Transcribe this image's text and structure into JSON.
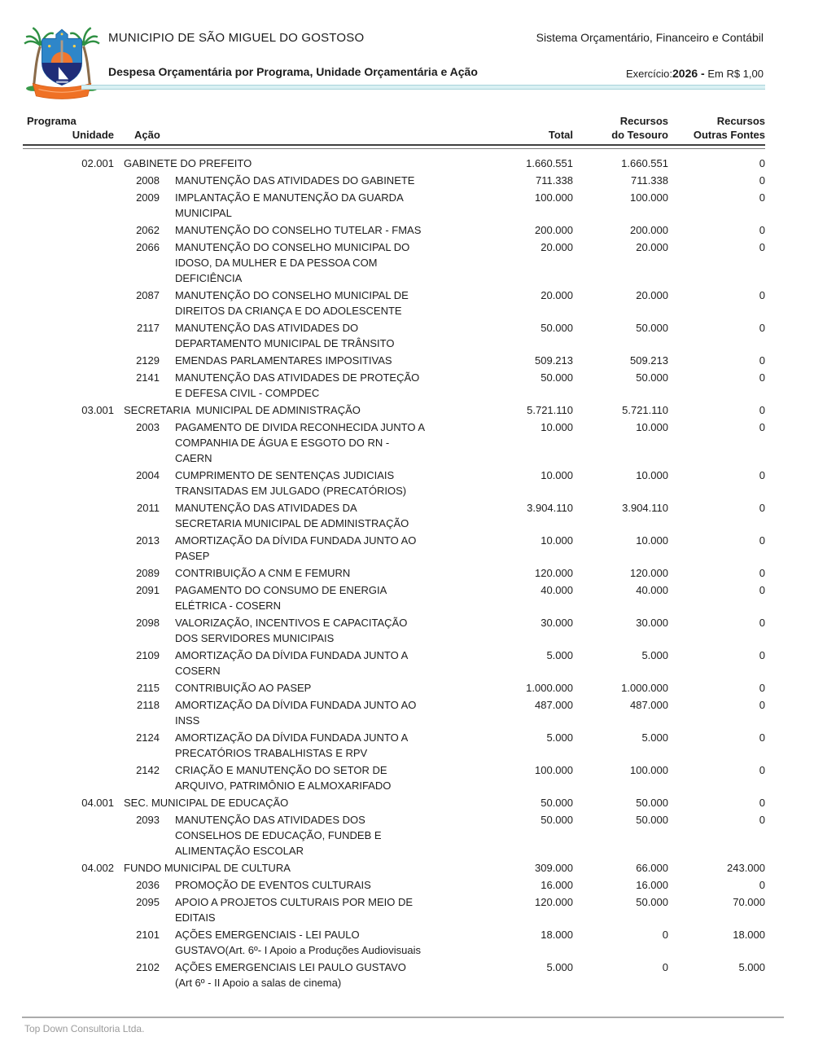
{
  "header": {
    "municipality": "MUNICIPIO DE SÃO MIGUEL DO GOSTOSO",
    "system_name": "Sistema Orçamentário, Financeiro e Contábil",
    "report_title": "Despesa Orçamentária por Programa, Unidade Orçamentária e Ação",
    "exercise_label": "Exercício:",
    "exercise_value": "2026 -",
    "currency_note": "Em R$ 1,00",
    "logo_icon": "municipal-coat-of-arms"
  },
  "columns": {
    "programa": "Programa",
    "unidade": "Unidade",
    "acao": "Ação",
    "total": "Total",
    "tesouro_line1": "Recursos",
    "tesouro_line2": "do Tesouro",
    "outras_line1": "Recursos",
    "outras_line2": "Outras Fontes"
  },
  "rows": [
    {
      "type": "unit",
      "code": "02.001",
      "name": "GABINETE DO PREFEITO",
      "total": "1.660.551",
      "tesouro": "1.660.551",
      "outras": "0"
    },
    {
      "type": "action",
      "code": "2008",
      "name": "MANUTENÇÃO DAS ATIVIDADES DO GABINETE",
      "total": "711.338",
      "tesouro": "711.338",
      "outras": "0"
    },
    {
      "type": "action",
      "code": "2009",
      "name": "IMPLANTAÇÃO E MANUTENÇÃO DA GUARDA\nMUNICIPAL",
      "total": "100.000",
      "tesouro": "100.000",
      "outras": "0"
    },
    {
      "type": "action",
      "code": "2062",
      "name": "MANUTENÇÃO DO CONSELHO TUTELAR - FMAS",
      "total": "200.000",
      "tesouro": "200.000",
      "outras": "0"
    },
    {
      "type": "action",
      "code": "2066",
      "name": "MANUTENÇÃO DO CONSELHO MUNICIPAL DO\nIDOSO, DA MULHER E DA PESSOA COM\nDEFICIÊNCIA",
      "total": "20.000",
      "tesouro": "20.000",
      "outras": "0"
    },
    {
      "type": "action",
      "code": "2087",
      "name": "MANUTENÇÃO DO CONSELHO MUNICIPAL DE\nDIREITOS DA CRIANÇA E DO ADOLESCENTE",
      "total": "20.000",
      "tesouro": "20.000",
      "outras": "0"
    },
    {
      "type": "action",
      "code": "2117",
      "name": "MANUTENÇÃO DAS ATIVIDADES DO\nDEPARTAMENTO MUNICIPAL DE TRÂNSITO",
      "total": "50.000",
      "tesouro": "50.000",
      "outras": "0"
    },
    {
      "type": "action",
      "code": "2129",
      "name": "EMENDAS PARLAMENTARES IMPOSITIVAS",
      "total": "509.213",
      "tesouro": "509.213",
      "outras": "0"
    },
    {
      "type": "action",
      "code": "2141",
      "name": "MANUTENÇÃO DAS ATIVIDADES DE PROTEÇÃO\nE DEFESA CIVIL - COMPDEC",
      "total": "50.000",
      "tesouro": "50.000",
      "outras": "0"
    },
    {
      "type": "unit",
      "code": "03.001",
      "name": "SECRETARIA  MUNICIPAL DE ADMINISTRAÇÃO",
      "total": "5.721.110",
      "tesouro": "5.721.110",
      "outras": "0"
    },
    {
      "type": "action",
      "code": "2003",
      "name": "PAGAMENTO DE DIVIDA RECONHECIDA JUNTO A\nCOMPANHIA DE ÁGUA E ESGOTO DO RN -\nCAERN",
      "total": "10.000",
      "tesouro": "10.000",
      "outras": "0"
    },
    {
      "type": "action",
      "code": "2004",
      "name": "CUMPRIMENTO DE SENTENÇAS JUDICIAIS\nTRANSITADAS EM JULGADO (PRECATÓRIOS)",
      "total": "10.000",
      "tesouro": "10.000",
      "outras": "0"
    },
    {
      "type": "action",
      "code": "2011",
      "name": "MANUTENÇÃO DAS ATIVIDADES DA\nSECRETARIA MUNICIPAL DE ADMINISTRAÇÃO",
      "total": "3.904.110",
      "tesouro": "3.904.110",
      "outras": "0"
    },
    {
      "type": "action",
      "code": "2013",
      "name": "AMORTIZAÇÃO DA DÍVIDA FUNDADA JUNTO AO\nPASEP",
      "total": "10.000",
      "tesouro": "10.000",
      "outras": "0"
    },
    {
      "type": "action",
      "code": "2089",
      "name": "CONTRIBUIÇÃO A CNM E FEMURN",
      "total": "120.000",
      "tesouro": "120.000",
      "outras": "0"
    },
    {
      "type": "action",
      "code": "2091",
      "name": "PAGAMENTO DO CONSUMO DE ENERGIA\nELÉTRICA - COSERN",
      "total": "40.000",
      "tesouro": "40.000",
      "outras": "0"
    },
    {
      "type": "action",
      "code": "2098",
      "name": "VALORIZAÇÃO, INCENTIVOS E CAPACITAÇÃO\nDOS SERVIDORES MUNICIPAIS",
      "total": "30.000",
      "tesouro": "30.000",
      "outras": "0"
    },
    {
      "type": "action",
      "code": "2109",
      "name": "AMORTIZAÇÃO DA DÍVIDA FUNDADA JUNTO A\nCOSERN",
      "total": "5.000",
      "tesouro": "5.000",
      "outras": "0"
    },
    {
      "type": "action",
      "code": "2115",
      "name": "CONTRIBUIÇÃO AO PASEP",
      "total": "1.000.000",
      "tesouro": "1.000.000",
      "outras": "0"
    },
    {
      "type": "action",
      "code": "2118",
      "name": "AMORTIZAÇÃO DA DÍVIDA FUNDADA JUNTO AO\nINSS",
      "total": "487.000",
      "tesouro": "487.000",
      "outras": "0"
    },
    {
      "type": "action",
      "code": "2124",
      "name": "AMORTIZAÇÃO DA DÍVIDA FUNDADA JUNTO A\nPRECATÓRIOS TRABALHISTAS E RPV",
      "total": "5.000",
      "tesouro": "5.000",
      "outras": "0"
    },
    {
      "type": "action",
      "code": "2142",
      "name": "CRIAÇÃO E MANUTENÇÃO DO SETOR DE\nARQUIVO, PATRIMÔNIO E ALMOXARIFADO",
      "total": "100.000",
      "tesouro": "100.000",
      "outras": "0"
    },
    {
      "type": "unit",
      "code": "04.001",
      "name": "SEC. MUNICIPAL DE EDUCAÇÃO",
      "total": "50.000",
      "tesouro": "50.000",
      "outras": "0"
    },
    {
      "type": "action",
      "code": "2093",
      "name": "MANUTENÇÃO DAS ATIVIDADES DOS\nCONSELHOS DE EDUCAÇÃO, FUNDEB E\nALIMENTAÇÃO ESCOLAR",
      "total": "50.000",
      "tesouro": "50.000",
      "outras": "0"
    },
    {
      "type": "unit",
      "code": "04.002",
      "name": "FUNDO MUNICIPAL DE CULTURA",
      "total": "309.000",
      "tesouro": "66.000",
      "outras": "243.000"
    },
    {
      "type": "action",
      "code": "2036",
      "name": "PROMOÇÃO DE EVENTOS CULTURAIS",
      "total": "16.000",
      "tesouro": "16.000",
      "outras": "0"
    },
    {
      "type": "action",
      "code": "2095",
      "name": "APOIO A PROJETOS CULTURAIS POR MEIO DE\nEDITAIS",
      "total": "120.000",
      "tesouro": "50.000",
      "outras": "70.000"
    },
    {
      "type": "action",
      "code": "2101",
      "name": "AÇÕES EMERGENCIAIS - LEI PAULO\nGUSTAVO(Art. 6º- I Apoio a Produções Audiovisuais",
      "total": "18.000",
      "tesouro": "0",
      "outras": "18.000"
    },
    {
      "type": "action",
      "code": "2102",
      "name": "AÇÕES EMERGENCIAIS LEI PAULO GUSTAVO\n(Art 6º - II Apoio a salas de cinema)",
      "total": "5.000",
      "tesouro": "0",
      "outras": "5.000"
    }
  ],
  "footer": {
    "company": "Top Down Consultoria Ltda."
  },
  "colors": {
    "separator_blue": "#d9f0f3",
    "rule_dark": "#3f3f3f",
    "footer_gray": "#9b9b9b",
    "shield_blue": "#2e86c9",
    "sea_navy": "#1f2d78",
    "sun_orange": "#f0762e",
    "banner_orange": "#ef7125",
    "palm_green": "#2f9043",
    "trunk_brown": "#8a6b4a"
  }
}
